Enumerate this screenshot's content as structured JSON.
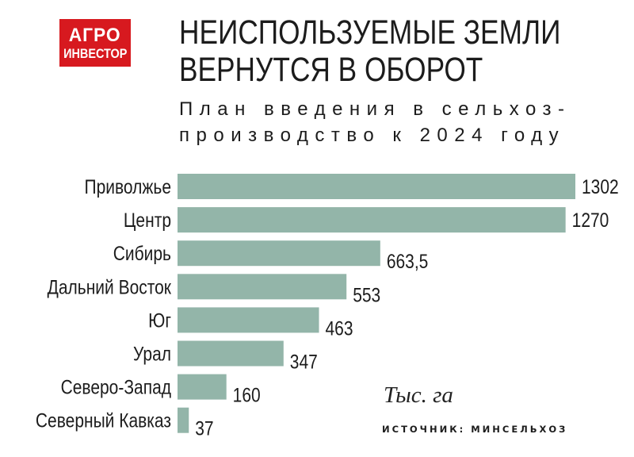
{
  "logo": {
    "line1": "АГРО",
    "line2": "ИНВЕСТОР"
  },
  "header": {
    "title_line1": "НЕИСПОЛЬЗУЕМЫЕ ЗЕМЛИ",
    "title_line2": "ВЕРНУТСЯ В ОБОРОТ",
    "subtitle_line1": "План введения в сельхоз-",
    "subtitle_line2": "производство к 2024 году"
  },
  "unit_label": "Тыс. га",
  "source_label": "ИСТОЧНИК: МИНСЕЛЬХОЗ",
  "colors": {
    "bar": "#93b5a9",
    "logo": "#d7191f"
  },
  "chart_data": {
    "type": "bar",
    "orientation": "horizontal",
    "categories": [
      "Приволжье",
      "Центр",
      "Сибирь",
      "Дальний Восток",
      "Юг",
      "Урал",
      "Северо-Запад",
      "Северный Кавказ"
    ],
    "values": [
      1302,
      1270,
      663.5,
      553,
      463,
      347,
      160,
      37
    ],
    "value_labels": [
      "1302",
      "1270",
      "663,5",
      "553",
      "463",
      "347",
      "160",
      "37"
    ],
    "title": "НЕИСПОЛЬЗУЕМЫЕ ЗЕМЛИ ВЕРНУТСЯ В ОБОРОТ",
    "subtitle": "План введения в сельхоз-производство к 2024 году",
    "unit": "Тыс. га",
    "grid": false,
    "legend": "none"
  }
}
